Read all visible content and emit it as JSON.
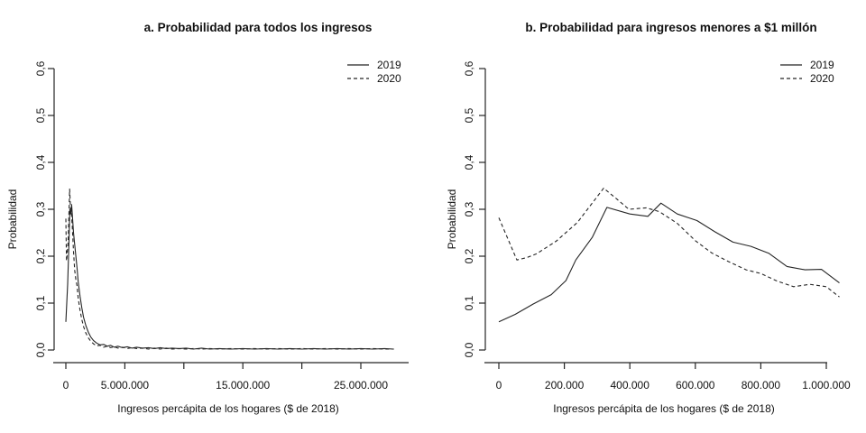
{
  "figure": {
    "background": "#ffffff",
    "line_color": "#242424",
    "text_color": "#111111"
  },
  "chart_data": [
    {
      "type": "line",
      "panel": "a",
      "title": "a. Probabilidad para todos los ingresos",
      "xlabel": "Ingresos percápita de los hogares ($ de 2018)",
      "ylabel": "Probabilidad",
      "ylim": [
        0,
        0.6
      ],
      "xlim": [
        0,
        28000000
      ],
      "grid": false,
      "legend_position": "top-right",
      "yticks": [
        0,
        0.1,
        0.2,
        0.3,
        0.4,
        0.5,
        0.6
      ],
      "ytick_labels": [
        "0,0",
        "0,1",
        "0,2",
        "0,3",
        "0,4",
        "0,5",
        "0,6"
      ],
      "xticks": [
        0,
        5000000,
        10000000,
        15000000,
        20000000,
        25000000
      ],
      "xtick_labels": [
        "0",
        "5.000.000",
        "",
        "15.000.000",
        "",
        "25.000.000"
      ],
      "series": [
        {
          "name": "2019",
          "style": "solid",
          "points": [
            [
              0,
              0.06
            ],
            [
              150000,
              0.14
            ],
            [
              250000,
              0.22
            ],
            [
              340000,
              0.3
            ],
            [
              420000,
              0.29
            ],
            [
              490000,
              0.31
            ],
            [
              560000,
              0.285
            ],
            [
              650000,
              0.25
            ],
            [
              750000,
              0.225
            ],
            [
              850000,
              0.2
            ],
            [
              950000,
              0.175
            ],
            [
              1050000,
              0.145
            ],
            [
              1200000,
              0.115
            ],
            [
              1350000,
              0.09
            ],
            [
              1500000,
              0.07
            ],
            [
              1700000,
              0.052
            ],
            [
              1900000,
              0.038
            ],
            [
              2100000,
              0.028
            ],
            [
              2350000,
              0.02
            ],
            [
              2600000,
              0.015
            ],
            [
              2900000,
              0.011
            ],
            [
              3200000,
              0.012
            ],
            [
              3500000,
              0.008
            ],
            [
              3800000,
              0.01
            ],
            [
              4100000,
              0.006
            ],
            [
              4400000,
              0.008
            ],
            [
              4800000,
              0.005
            ],
            [
              5200000,
              0.007
            ],
            [
              5600000,
              0.004
            ],
            [
              6000000,
              0.006
            ],
            [
              6500000,
              0.004
            ],
            [
              7000000,
              0.005
            ],
            [
              7500000,
              0.003
            ],
            [
              8000000,
              0.005
            ],
            [
              8500000,
              0.003
            ],
            [
              9000000,
              0.004
            ],
            [
              9600000,
              0.003
            ],
            [
              10200000,
              0.004
            ],
            [
              10800000,
              0.002
            ],
            [
              11500000,
              0.004
            ],
            [
              12200000,
              0.002
            ],
            [
              13000000,
              0.003
            ],
            [
              14000000,
              0.002
            ],
            [
              15000000,
              0.003
            ],
            [
              16000000,
              0.002
            ],
            [
              17000000,
              0.003
            ],
            [
              18000000,
              0.002
            ],
            [
              19000000,
              0.003
            ],
            [
              20000000,
              0.002
            ],
            [
              21000000,
              0.003
            ],
            [
              22000000,
              0.002
            ],
            [
              23000000,
              0.003
            ],
            [
              24000000,
              0.002
            ],
            [
              25000000,
              0.003
            ],
            [
              26000000,
              0.002
            ],
            [
              27000000,
              0.003
            ],
            [
              27800000,
              0.002
            ]
          ]
        },
        {
          "name": "2020",
          "style": "dashed",
          "points": [
            [
              0,
              0.28
            ],
            [
              50000,
              0.19
            ],
            [
              100000,
              0.2
            ],
            [
              200000,
              0.235
            ],
            [
              320000,
              0.343
            ],
            [
              400000,
              0.3
            ],
            [
              450000,
              0.3
            ],
            [
              550000,
              0.26
            ],
            [
              650000,
              0.21
            ],
            [
              750000,
              0.17
            ],
            [
              850000,
              0.15
            ],
            [
              950000,
              0.137
            ],
            [
              1050000,
              0.11
            ],
            [
              1200000,
              0.085
            ],
            [
              1350000,
              0.065
            ],
            [
              1500000,
              0.05
            ],
            [
              1700000,
              0.036
            ],
            [
              1900000,
              0.026
            ],
            [
              2100000,
              0.019
            ],
            [
              2350000,
              0.013
            ],
            [
              2600000,
              0.009
            ],
            [
              2900000,
              0.01
            ],
            [
              3200000,
              0.006
            ],
            [
              3500000,
              0.008
            ],
            [
              3800000,
              0.005
            ],
            [
              4100000,
              0.007
            ],
            [
              4400000,
              0.004
            ],
            [
              4800000,
              0.006
            ],
            [
              5200000,
              0.003
            ],
            [
              5600000,
              0.005
            ],
            [
              6000000,
              0.003
            ],
            [
              6500000,
              0.004
            ],
            [
              7000000,
              0.002
            ],
            [
              7500000,
              0.004
            ],
            [
              8000000,
              0.002
            ],
            [
              8500000,
              0.004
            ],
            [
              9000000,
              0.002
            ],
            [
              9600000,
              0.003
            ],
            [
              10200000,
              0.002
            ],
            [
              10800000,
              0.003
            ],
            [
              11500000,
              0.002
            ],
            [
              12200000,
              0.003
            ],
            [
              13000000,
              0.002
            ],
            [
              14000000,
              0.003
            ],
            [
              15000000,
              0.002
            ],
            [
              16000000,
              0.003
            ],
            [
              17000000,
              0.002
            ],
            [
              18000000,
              0.003
            ],
            [
              19000000,
              0.002
            ],
            [
              20000000,
              0.003
            ],
            [
              21000000,
              0.002
            ],
            [
              22000000,
              0.003
            ],
            [
              23000000,
              0.002
            ],
            [
              24000000,
              0.003
            ],
            [
              25000000,
              0.002
            ],
            [
              26000000,
              0.003
            ],
            [
              27000000,
              0.002
            ],
            [
              27800000,
              0.002
            ]
          ]
        }
      ]
    },
    {
      "type": "line",
      "panel": "b",
      "title": "b. Probabilidad para ingresos menores a $1 millón",
      "xlabel": "Ingresos percápita de los hogares ($ de 2018)",
      "ylabel": "Probabilidad",
      "ylim": [
        0,
        0.6
      ],
      "xlim": [
        0,
        1050000
      ],
      "grid": false,
      "legend_position": "top-right",
      "yticks": [
        0,
        0.1,
        0.2,
        0.3,
        0.4,
        0.5,
        0.6
      ],
      "ytick_labels": [
        "0,0",
        "0,1",
        "0,2",
        "0,3",
        "0,4",
        "0,5",
        "0,6"
      ],
      "xticks": [
        0,
        200000,
        400000,
        600000,
        800000,
        1000000
      ],
      "xtick_labels": [
        "0",
        "200.000",
        "400.000",
        "600.000",
        "800.000",
        "1.000.000"
      ],
      "series": [
        {
          "name": "2019",
          "style": "solid",
          "points": [
            [
              0,
              0.06
            ],
            [
              50000,
              0.076
            ],
            [
              105000,
              0.098
            ],
            [
              160000,
              0.118
            ],
            [
              205000,
              0.148
            ],
            [
              235000,
              0.192
            ],
            [
              285000,
              0.24
            ],
            [
              330000,
              0.304
            ],
            [
              400000,
              0.29
            ],
            [
              455000,
              0.285
            ],
            [
              495000,
              0.313
            ],
            [
              545000,
              0.29
            ],
            [
              605000,
              0.276
            ],
            [
              660000,
              0.252
            ],
            [
              715000,
              0.23
            ],
            [
              770000,
              0.221
            ],
            [
              825000,
              0.206
            ],
            [
              880000,
              0.178
            ],
            [
              935000,
              0.171
            ],
            [
              985000,
              0.172
            ],
            [
              1040000,
              0.143
            ]
          ]
        },
        {
          "name": "2020",
          "style": "dashed",
          "points": [
            [
              0,
              0.282
            ],
            [
              55000,
              0.192
            ],
            [
              85000,
              0.197
            ],
            [
              115000,
              0.205
            ],
            [
              175000,
              0.232
            ],
            [
              240000,
              0.272
            ],
            [
              320000,
              0.345
            ],
            [
              360000,
              0.322
            ],
            [
              397000,
              0.3
            ],
            [
              450000,
              0.303
            ],
            [
              490000,
              0.295
            ],
            [
              545000,
              0.27
            ],
            [
              600000,
              0.233
            ],
            [
              650000,
              0.207
            ],
            [
              700000,
              0.189
            ],
            [
              755000,
              0.171
            ],
            [
              800000,
              0.163
            ],
            [
              850000,
              0.147
            ],
            [
              900000,
              0.135
            ],
            [
              950000,
              0.14
            ],
            [
              1000000,
              0.135
            ],
            [
              1040000,
              0.113
            ]
          ]
        }
      ]
    }
  ]
}
